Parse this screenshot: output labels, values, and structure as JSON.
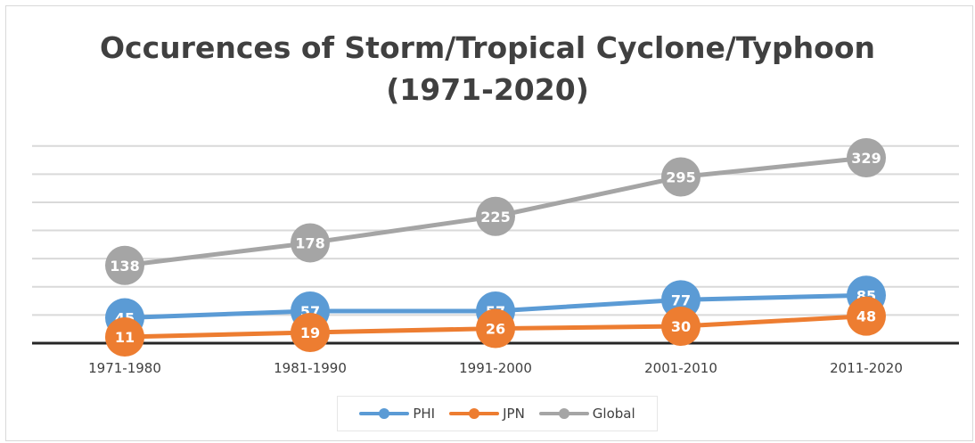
{
  "chart_data": {
    "type": "line",
    "title_line1": "Occurences of Storm/Tropical Cyclone/Typhoon",
    "title_line2": "(1971-2020)",
    "categories": [
      "1971-1980",
      "1981-1990",
      "1991-2000",
      "2001-2010",
      "2011-2020"
    ],
    "series": [
      {
        "name": "PHI",
        "values": [
          45,
          57,
          57,
          77,
          85
        ],
        "color": "#5b9bd5"
      },
      {
        "name": "JPN",
        "values": [
          11,
          19,
          26,
          30,
          48
        ],
        "color": "#ed7d31"
      },
      {
        "name": "Global",
        "values": [
          138,
          178,
          225,
          295,
          329
        ],
        "color": "#a5a5a5"
      }
    ],
    "xlabel": "",
    "ylabel": "",
    "ylim": [
      0,
      350
    ],
    "gridlines": true,
    "axis_labels_shown": false,
    "legend_position": "bottom",
    "data_labels": true
  }
}
